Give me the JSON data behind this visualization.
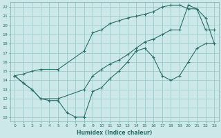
{
  "xlabel": "Humidex (Indice chaleur)",
  "background_color": "#cce8e8",
  "grid_color": "#99cccc",
  "line_color": "#2a6e68",
  "xlim": [
    -0.5,
    23.5
  ],
  "ylim": [
    9.5,
    22.5
  ],
  "xticks": [
    0,
    1,
    2,
    3,
    4,
    5,
    6,
    7,
    8,
    9,
    10,
    11,
    12,
    13,
    14,
    15,
    16,
    17,
    18,
    19,
    20,
    21,
    22,
    23
  ],
  "yticks": [
    10,
    11,
    12,
    13,
    14,
    15,
    16,
    17,
    18,
    19,
    20,
    21,
    22
  ],
  "line1_x": [
    0,
    1,
    2,
    3,
    4,
    5,
    6,
    7,
    8,
    9,
    10,
    11,
    12,
    13,
    14,
    15,
    16,
    17,
    18,
    19,
    20,
    21,
    22,
    23
  ],
  "line1_y": [
    14.5,
    13.7,
    13.0,
    12.0,
    11.8,
    11.8,
    10.5,
    10.0,
    10.0,
    12.8,
    13.2,
    14.2,
    15.0,
    16.0,
    17.2,
    17.5,
    16.5,
    14.5,
    14.0,
    14.5,
    16.0,
    17.5,
    18.0,
    18.0
  ],
  "line2_x": [
    0,
    1,
    2,
    3,
    5,
    8,
    9,
    10,
    11,
    12,
    13,
    14,
    15,
    16,
    17,
    18,
    19,
    20,
    21,
    22,
    23
  ],
  "line2_y": [
    14.5,
    14.7,
    15.0,
    15.2,
    15.2,
    17.2,
    19.2,
    19.5,
    20.2,
    20.5,
    20.8,
    21.0,
    21.2,
    21.5,
    22.0,
    22.2,
    22.2,
    21.8,
    21.8,
    19.5,
    19.5
  ],
  "line3_x": [
    0,
    1,
    2,
    3,
    5,
    8,
    9,
    10,
    11,
    12,
    13,
    14,
    15,
    16,
    17,
    18,
    19,
    20,
    21,
    22,
    23
  ],
  "line3_y": [
    14.5,
    13.7,
    13.0,
    12.0,
    12.0,
    13.0,
    14.5,
    15.2,
    15.8,
    16.2,
    16.8,
    17.5,
    18.2,
    18.5,
    19.0,
    19.5,
    19.5,
    22.2,
    21.8,
    20.8,
    18.0
  ]
}
